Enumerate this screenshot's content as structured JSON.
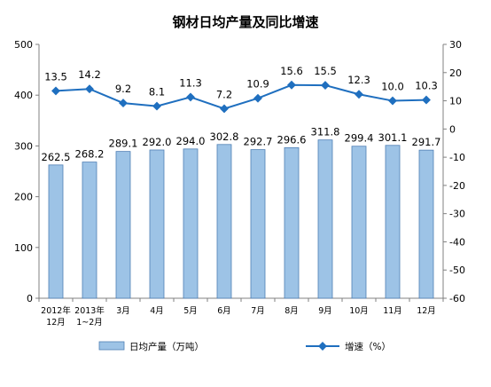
{
  "chart_data": {
    "type": "bar",
    "title": "钢材日均产量及同比增速",
    "categories": [
      [
        "2012年",
        "12月"
      ],
      [
        "2013年",
        "1~2月"
      ],
      [
        "3月"
      ],
      [
        "4月"
      ],
      [
        "5月"
      ],
      [
        "6月"
      ],
      [
        "7月"
      ],
      [
        "8月"
      ],
      [
        "9月"
      ],
      [
        "10月"
      ],
      [
        "11月"
      ],
      [
        "12月"
      ]
    ],
    "series": [
      {
        "name": "日均产量（万吨）",
        "type": "bar",
        "axis": "left",
        "color": "#9DC3E6",
        "values": [
          262.5,
          268.2,
          289.1,
          292.0,
          294.0,
          302.8,
          292.7,
          296.6,
          311.8,
          299.4,
          301.1,
          291.7
        ],
        "labels": [
          "262.5",
          "268.2",
          "289.1",
          "292.0",
          "294.0",
          "302.8",
          "292.7",
          "296.6",
          "311.8",
          "299.4",
          "301.1",
          "291.7"
        ]
      },
      {
        "name": "增速（%）",
        "type": "line",
        "axis": "right",
        "color": "#1F6FBF",
        "values": [
          13.5,
          14.2,
          9.2,
          8.1,
          11.3,
          7.2,
          10.9,
          15.6,
          15.5,
          12.3,
          10.0,
          10.3
        ],
        "labels": [
          "13.5",
          "14.2",
          "9.2",
          "8.1",
          "11.3",
          "7.2",
          "10.9",
          "15.6",
          "15.5",
          "12.3",
          "10.0",
          "10.3"
        ]
      }
    ],
    "y_left": {
      "range": [
        0,
        500
      ],
      "ticks": [
        "0",
        "100",
        "200",
        "300",
        "400",
        "500"
      ]
    },
    "y_right": {
      "range": [
        -60,
        30
      ],
      "ticks": [
        "30",
        "20",
        "10",
        "0",
        "-10",
        "-20",
        "-30",
        "-40",
        "-50",
        "-60"
      ]
    },
    "grid": false,
    "legend_position": "bottom"
  }
}
